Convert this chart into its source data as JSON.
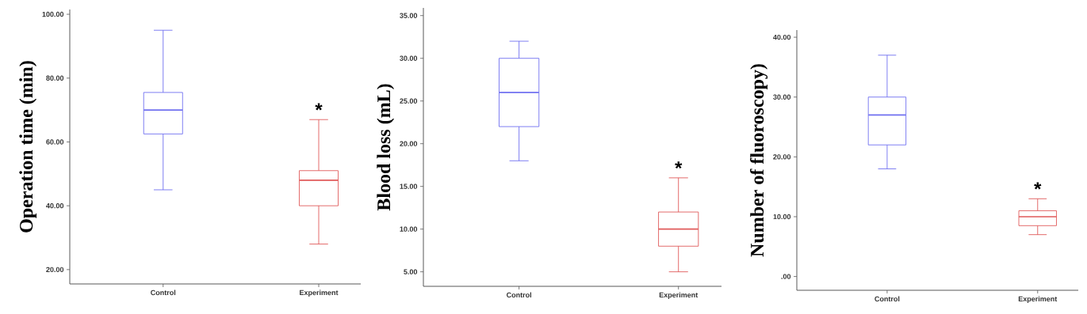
{
  "chart_data": [
    {
      "type": "box",
      "ylabel": "Operation time (min)",
      "categories": [
        "Control",
        "Experiment"
      ],
      "colors": [
        "#7070f0",
        "#e05a5a"
      ],
      "boxes": [
        {
          "low": 45,
          "q1": 62.5,
          "median": 70,
          "q3": 75.5,
          "high": 95
        },
        {
          "low": 28,
          "q1": 40,
          "median": 48,
          "q3": 51,
          "high": 67
        }
      ],
      "ylim": [
        15.5,
        101.5
      ],
      "yticks": [
        {
          "value": 20,
          "label": "20.00"
        },
        {
          "value": 40,
          "label": "40.00"
        },
        {
          "value": 60,
          "label": "60.00"
        },
        {
          "value": 80,
          "label": "80.00"
        },
        {
          "value": 100,
          "label": "100.00"
        }
      ],
      "annotations": [
        "*"
      ]
    },
    {
      "type": "box",
      "ylabel": "Blood loss (mL)",
      "categories": [
        "Control",
        "Experiment"
      ],
      "colors": [
        "#7070f0",
        "#e05a5a"
      ],
      "boxes": [
        {
          "low": 18,
          "q1": 22,
          "median": 26,
          "q3": 30,
          "high": 32
        },
        {
          "low": 5,
          "q1": 8,
          "median": 10,
          "q3": 12,
          "high": 16
        }
      ],
      "ylim": [
        3.3,
        35.9
      ],
      "yticks": [
        {
          "value": 5,
          "label": "5.00"
        },
        {
          "value": 10,
          "label": "10.00"
        },
        {
          "value": 15,
          "label": "15.00"
        },
        {
          "value": 20,
          "label": "20.00"
        },
        {
          "value": 25,
          "label": "25.00"
        },
        {
          "value": 30,
          "label": "30.00"
        },
        {
          "value": 35,
          "label": "35.00"
        }
      ],
      "annotations": [
        "*"
      ]
    },
    {
      "type": "box",
      "ylabel": "Number of fluoroscopy)",
      "categories": [
        "Control",
        "Experiment"
      ],
      "colors": [
        "#7070f0",
        "#e05a5a"
      ],
      "boxes": [
        {
          "low": 18,
          "q1": 22,
          "median": 27,
          "q3": 30,
          "high": 37
        },
        {
          "low": 7,
          "q1": 8.5,
          "median": 10,
          "q3": 11,
          "high": 13
        }
      ],
      "ylim": [
        -2.3,
        41.2
      ],
      "yticks": [
        {
          "value": 0,
          "label": ".00"
        },
        {
          "value": 10,
          "label": "10.00"
        },
        {
          "value": 20,
          "label": "20.00"
        },
        {
          "value": 30,
          "label": "30.00"
        },
        {
          "value": 40,
          "label": "40.00"
        }
      ],
      "annotations": [
        "*"
      ]
    }
  ]
}
